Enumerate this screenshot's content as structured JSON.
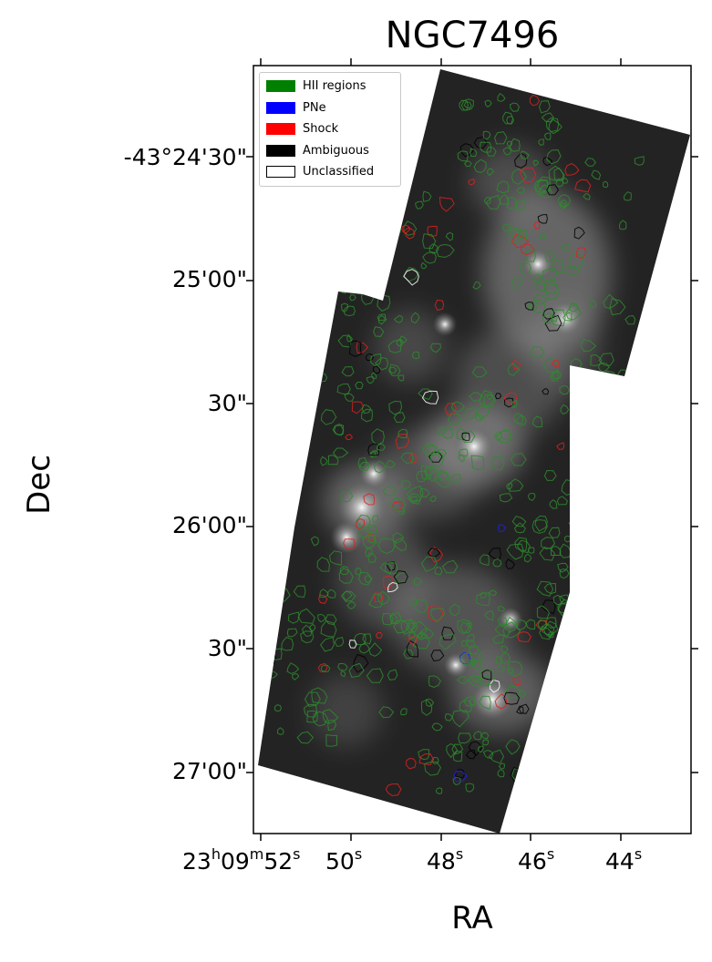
{
  "title": "NGC7496",
  "xlabel": "RA",
  "ylabel": "Dec",
  "y_ticks": [
    "-43°24'30\"",
    "25'00\"",
    "30\"",
    "26'00\"",
    "30\"",
    "27'00\""
  ],
  "x_ticks": [
    {
      "prefix": "23",
      "h": "h",
      "mid": "09",
      "m": "m",
      "val": "52",
      "s": "s"
    },
    {
      "val": "50",
      "s": "s"
    },
    {
      "val": "48",
      "s": "s"
    },
    {
      "val": "46",
      "s": "s"
    },
    {
      "val": "44",
      "s": "s"
    }
  ],
  "legend": [
    {
      "label": "HII regions",
      "color": "#008000",
      "style": "filled"
    },
    {
      "label": "PNe",
      "color": "#0000ff",
      "style": "filled"
    },
    {
      "label": "Shock",
      "color": "#ff0000",
      "style": "filled"
    },
    {
      "label": "Ambiguous",
      "color": "#000000",
      "style": "filled"
    },
    {
      "label": "Unclassified",
      "color": "#ffffff",
      "style": "outline"
    }
  ],
  "colors": {
    "hii": "#2e8b2e",
    "pne": "#2020ff",
    "shock": "#e02020",
    "ambiguous": "#000000",
    "unclassified": "#ffffff"
  }
}
